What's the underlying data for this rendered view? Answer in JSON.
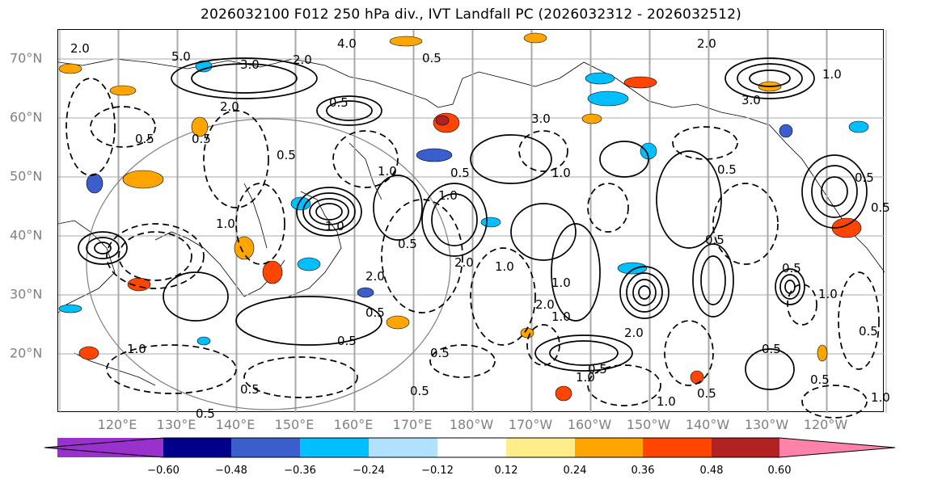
{
  "title": "2026032100 F012 250 hPa div., IVT Landfall PC (2026032312 - 2026032512)",
  "lat_labels": [
    "70°N",
    "60°N",
    "50°N",
    "40°N",
    "30°N",
    "20°N"
  ],
  "lon_labels": [
    "120°E",
    "130°E",
    "140°E",
    "150°E",
    "160°E",
    "170°E",
    "180°W",
    "170°W",
    "160°W",
    "150°W",
    "140°W",
    "130°W",
    "120°W"
  ],
  "colorbar": {
    "colors": [
      "#9932cc",
      "#00008b",
      "#3a5fcd",
      "#00bfff",
      "#b0e2ff",
      "#ffffff",
      "#ffec8b",
      "#ffa500",
      "#ff4500",
      "#b22222",
      "#ff82ab"
    ],
    "ticks": [
      "−0.60",
      "−0.48",
      "−0.36",
      "−0.24",
      "−0.12",
      "0.12",
      "0.24",
      "0.36",
      "0.48",
      "0.60"
    ]
  },
  "contour_labels": [
    "2.0",
    "4.0",
    "5.0",
    "3.0",
    "2.0",
    "0.5",
    "1.0",
    "2.0",
    "3.0",
    "3.0",
    "2.0",
    "1.0",
    "0.5",
    "2.0",
    "0.5",
    "1.0",
    "0.5",
    "1.0",
    "0.5",
    "2.0",
    "1.0",
    "2.0",
    "1.0",
    "0.5",
    "1.0",
    "0.5",
    "1.0",
    "0.5",
    "0.5",
    "1.0",
    "0.5",
    "0.5",
    "0.5",
    "1.0",
    "0.5",
    "2.0",
    "1.0",
    "0.5",
    "0.5",
    "1.0",
    "0.5",
    "0.5",
    "1.0",
    "0.5",
    "0.5",
    "0.5",
    "1.0",
    "0.5",
    "0.5",
    "0.5"
  ]
}
